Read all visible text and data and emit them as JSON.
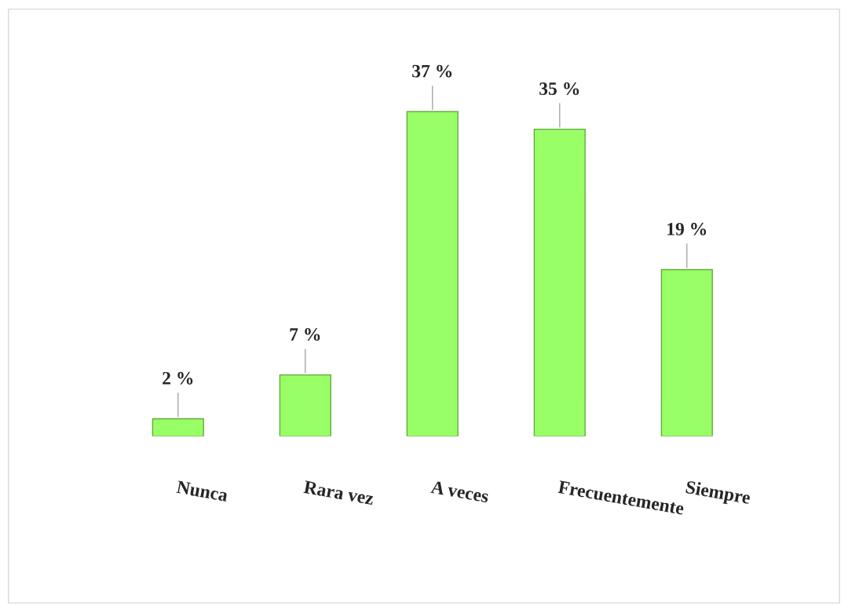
{
  "chart_data": {
    "type": "bar",
    "categories": [
      "Nunca",
      "Rara vez",
      "A veces",
      "Frecuentemente",
      "Siempre"
    ],
    "values": [
      2,
      7,
      37,
      35,
      19
    ],
    "value_labels": [
      "2 %",
      "7 %",
      "37 %",
      "35 %",
      "19 %"
    ],
    "color": "#99ff66"
  }
}
